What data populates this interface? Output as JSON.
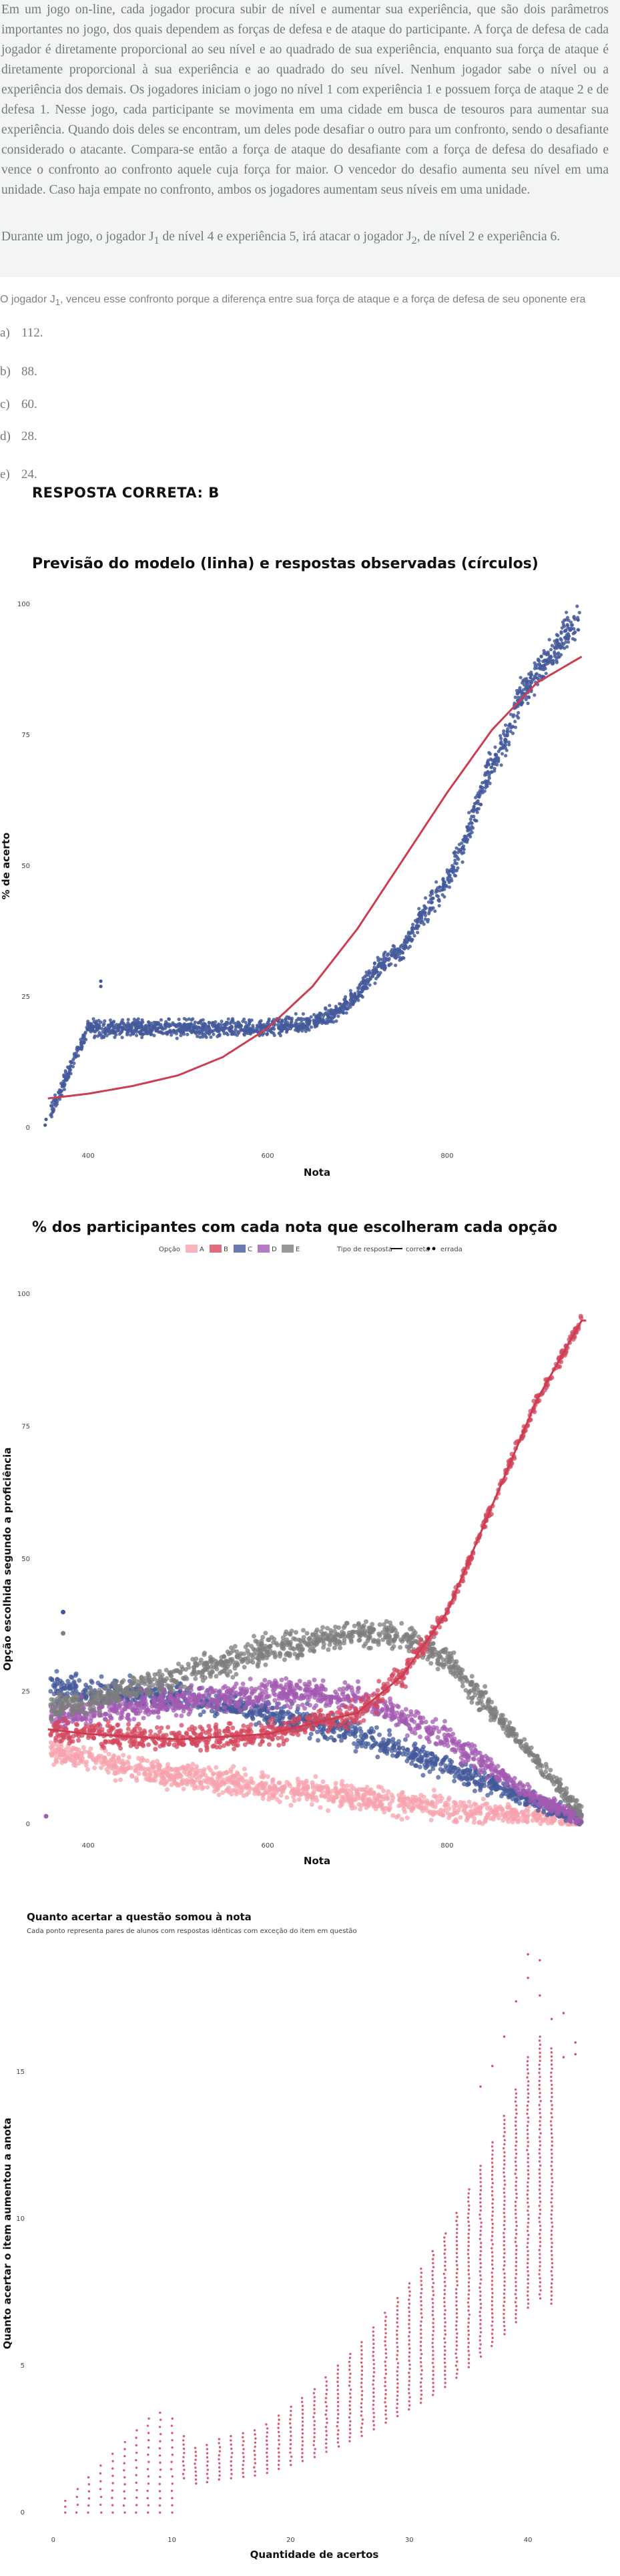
{
  "question": {
    "paragraph1": "Em um jogo on-line, cada jogador procura subir de nível e aumentar sua experiência, que são dois parâmetros importantes no jogo, dos quais dependem as forças de defesa e de ataque do participante. A força de defesa de cada jogador é diretamente proporcional ao seu nível e ao quadrado de sua experiência, enquanto sua força de ataque é diretamente proporcional à sua experiência e ao quadrado do seu nível. Nenhum jogador sabe o nível ou a experiência dos demais. Os jogadores iniciam o jogo no nível 1 com experiência 1 e possuem força de ataque 2 e de defesa 1. Nesse jogo, cada participante se movimenta em uma cidade em busca de tesouros para aumentar sua experiência. Quando dois deles se encontram, um deles pode desafiar o outro para um confronto, sendo o desafiante considerado o atacante. Compara-se então a força de ataque do desafiante com a força de defesa do desafiado e vence o confronto ao confronto aquele cuja força for maior. O vencedor do desafio aumenta seu nível em uma unidade. Caso haja empate no confronto, ambos os jogadores aumentam seus níveis em uma unidade.",
    "paragraph2_a": "Durante um jogo, o jogador J",
    "paragraph2_sub1": "1",
    "paragraph2_b": " de nível 4 e experiência 5, irá atacar o jogador J",
    "paragraph2_sub2": "2",
    "paragraph2_c": ", de nível 2 e experiência 6.",
    "stem_a": "O jogador J",
    "stem_sub": "1",
    "stem_b": ", venceu esse confronto porque a diferença entre sua força de ataque e a força de defesa de seu oponente era",
    "options": [
      {
        "letter": "a)",
        "text": "112."
      },
      {
        "letter": "b)",
        "text": "88."
      },
      {
        "letter": "c)",
        "text": "60."
      },
      {
        "letter": "d)",
        "text": "28."
      },
      {
        "letter": "e)",
        "text": "24."
      }
    ],
    "answer": "RESPOSTA CORRETA: B"
  },
  "colors": {
    "A": "#f7a3ad",
    "B": "#d4485f",
    "C": "#44599b",
    "D": "#a35bb1",
    "E": "#7e7e7e",
    "curve": "#cc3d52",
    "observed": "#44599b"
  },
  "chart_data": [
    {
      "type": "scatter",
      "title": "Previsão do modelo (linha) e respostas observadas (círculos)",
      "xlabel": "Nota",
      "ylabel": "% de acerto",
      "xticks": [
        "400",
        "600",
        "800"
      ],
      "yticks": [
        0,
        25,
        50,
        75,
        100
      ],
      "ylim": [
        0,
        100
      ],
      "xlim": [
        350,
        960
      ],
      "model_curve": {
        "x": [
          350,
          400,
          450,
          500,
          550,
          600,
          650,
          700,
          750,
          800,
          850,
          900,
          950
        ],
        "y": [
          5.5,
          6.5,
          8,
          10,
          13.5,
          19,
          27,
          38,
          51,
          64,
          76,
          85,
          90
        ]
      },
      "observed": {
        "x": [
          352,
          354,
          400,
          420,
          450,
          500,
          550,
          600,
          620,
          650,
          680,
          700,
          720,
          750,
          770,
          800,
          820,
          850,
          870,
          880,
          900,
          920,
          945
        ],
        "y": [
          0.5,
          1.5,
          19,
          19,
          19,
          19,
          19,
          19,
          19.5,
          20,
          22.5,
          25.5,
          30,
          34,
          40,
          47,
          55,
          70,
          76,
          82,
          87,
          91,
          97
        ]
      }
    },
    {
      "type": "scatter",
      "title": "% dos participantes com cada nota que escolheram cada opção",
      "xlabel": "Nota",
      "ylabel": "Opção escolhida segundo a proficiência",
      "xticks": [
        "400",
        "600",
        "800"
      ],
      "yticks": [
        0,
        25,
        50,
        75,
        100
      ],
      "ylim": [
        0,
        100
      ],
      "legend": {
        "position": "top",
        "option_title": "Opção",
        "option_labels": [
          "A",
          "B",
          "C",
          "D",
          "E"
        ],
        "type_title": "Tipo de resposta",
        "type_labels": [
          "correta",
          "errada"
        ]
      },
      "series": [
        {
          "name": "A",
          "x": [
            350,
            400,
            500,
            600,
            700,
            800,
            900,
            950
          ],
          "y": [
            14,
            12,
            9,
            7,
            5,
            3,
            1.5,
            0.5
          ]
        },
        {
          "name": "B",
          "x": [
            350,
            400,
            500,
            600,
            700,
            750,
            800,
            850,
            900,
            950
          ],
          "y": [
            18,
            17,
            16,
            17,
            21,
            28,
            40,
            60,
            80,
            95
          ]
        },
        {
          "name": "C",
          "x": [
            350,
            400,
            500,
            600,
            700,
            800,
            900,
            950
          ],
          "y": [
            26,
            25,
            24,
            21,
            17,
            11,
            4,
            1
          ]
        },
        {
          "name": "D",
          "x": [
            350,
            400,
            500,
            600,
            700,
            800,
            900,
            950
          ],
          "y": [
            20,
            21,
            23,
            25,
            24,
            16,
            5,
            1
          ]
        },
        {
          "name": "E",
          "x": [
            350,
            400,
            500,
            600,
            700,
            750,
            800,
            900,
            950
          ],
          "y": [
            22,
            23,
            28,
            33,
            36,
            36,
            31,
            12,
            2
          ]
        }
      ]
    },
    {
      "type": "scatter",
      "title": "Quanto acertar a questão somou à nota",
      "subtitle": "Cada ponto representa pares de alunos com respostas idênticas com exceção do item em questão",
      "xlabel": "Quantidade de acertos",
      "ylabel": "Quanto acertar o item aumentou a anota",
      "xticks": [
        0,
        10,
        20,
        30,
        40
      ],
      "yticks": [
        0,
        5,
        10,
        15
      ],
      "xlim": [
        -1,
        45
      ],
      "ylim": [
        -0.5,
        19.5
      ],
      "points": {
        "x": [
          1,
          2,
          3,
          4,
          5,
          6,
          7,
          8,
          9,
          10,
          11,
          12,
          13,
          14,
          15,
          16,
          17,
          18,
          19,
          20,
          21,
          22,
          23,
          24,
          25,
          26,
          27,
          28,
          29,
          30,
          31,
          32,
          33,
          34,
          35,
          36,
          37,
          38,
          39,
          40,
          41,
          42
        ],
        "y": [
          0.4,
          0.8,
          1.2,
          1.6,
          2.0,
          2.4,
          2.8,
          3.2,
          3.4,
          3.2,
          2.6,
          2.2,
          2.3,
          2.5,
          2.6,
          2.7,
          2.8,
          3.0,
          3.3,
          3.6,
          3.9,
          4.2,
          4.6,
          5.0,
          5.4,
          5.8,
          6.3,
          6.8,
          7.3,
          7.8,
          8.3,
          8.9,
          9.5,
          10.2,
          11.0,
          11.8,
          12.6,
          13.5,
          14.4,
          15.5,
          16.2,
          15.8
        ]
      }
    }
  ]
}
